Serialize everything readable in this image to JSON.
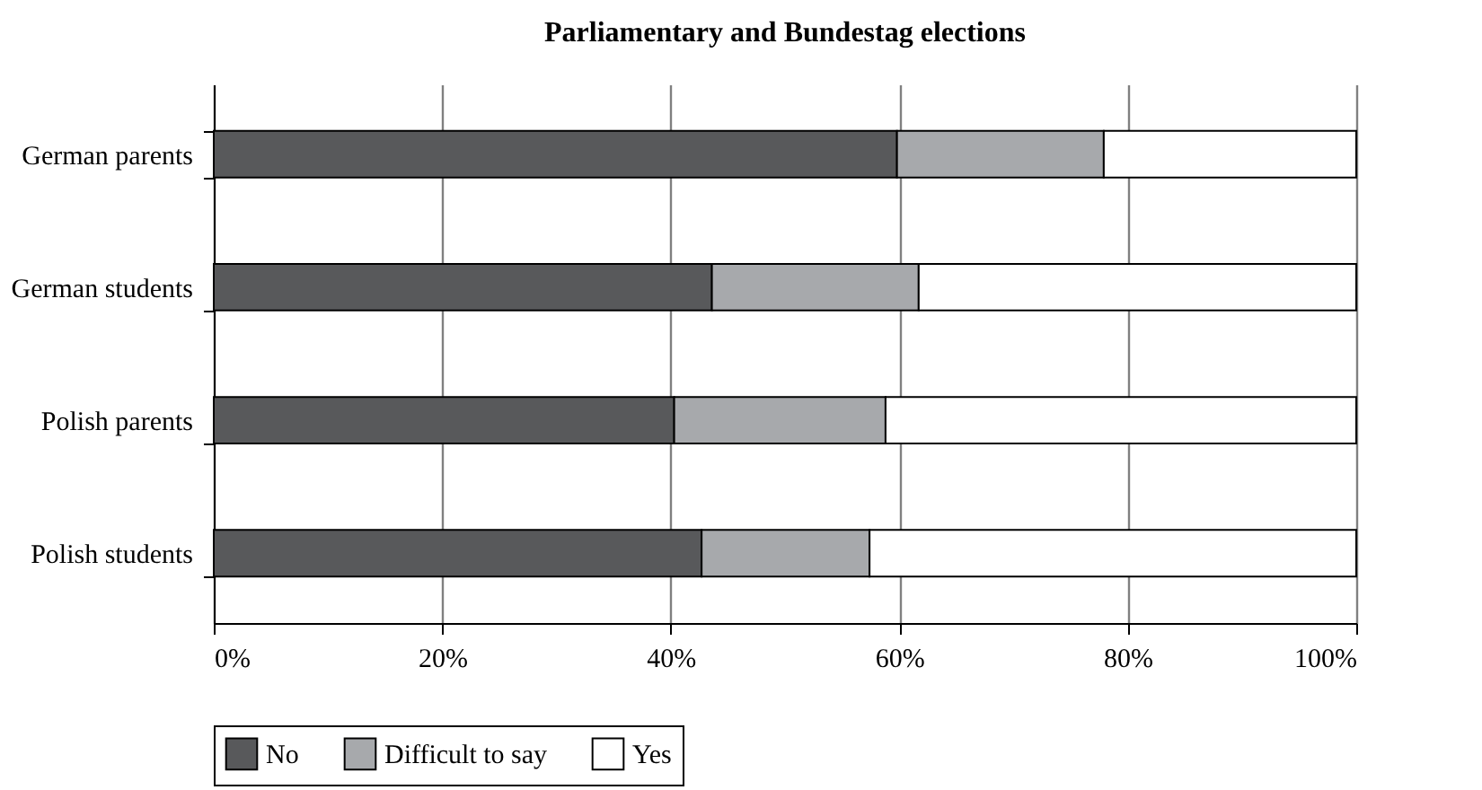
{
  "chart_data": {
    "type": "bar",
    "orientation": "horizontal",
    "stacked": true,
    "title": "Parliamentary and Bundestag elections",
    "categories": [
      "German parents",
      "German students",
      "Polish parents",
      "Polish students"
    ],
    "series": [
      {
        "name": "No",
        "color": "#58595b",
        "values": [
          59.8,
          43.6,
          40.3,
          42.7
        ]
      },
      {
        "name": "Difficult to say",
        "color": "#a7a9ac",
        "values": [
          18.1,
          18.1,
          18.5,
          14.7
        ]
      },
      {
        "name": "Yes",
        "color": "#ffffff",
        "values": [
          22.1,
          38.3,
          41.2,
          42.6
        ]
      }
    ],
    "xlim": [
      0,
      100
    ],
    "xticks": [
      {
        "value": 0,
        "label": "0%"
      },
      {
        "value": 20,
        "label": "20%"
      },
      {
        "value": 40,
        "label": "40%"
      },
      {
        "value": 60,
        "label": "60%"
      },
      {
        "value": 80,
        "label": "80%"
      },
      {
        "value": 100,
        "label": "100%"
      }
    ],
    "grid": "x",
    "legend": "bottom"
  }
}
